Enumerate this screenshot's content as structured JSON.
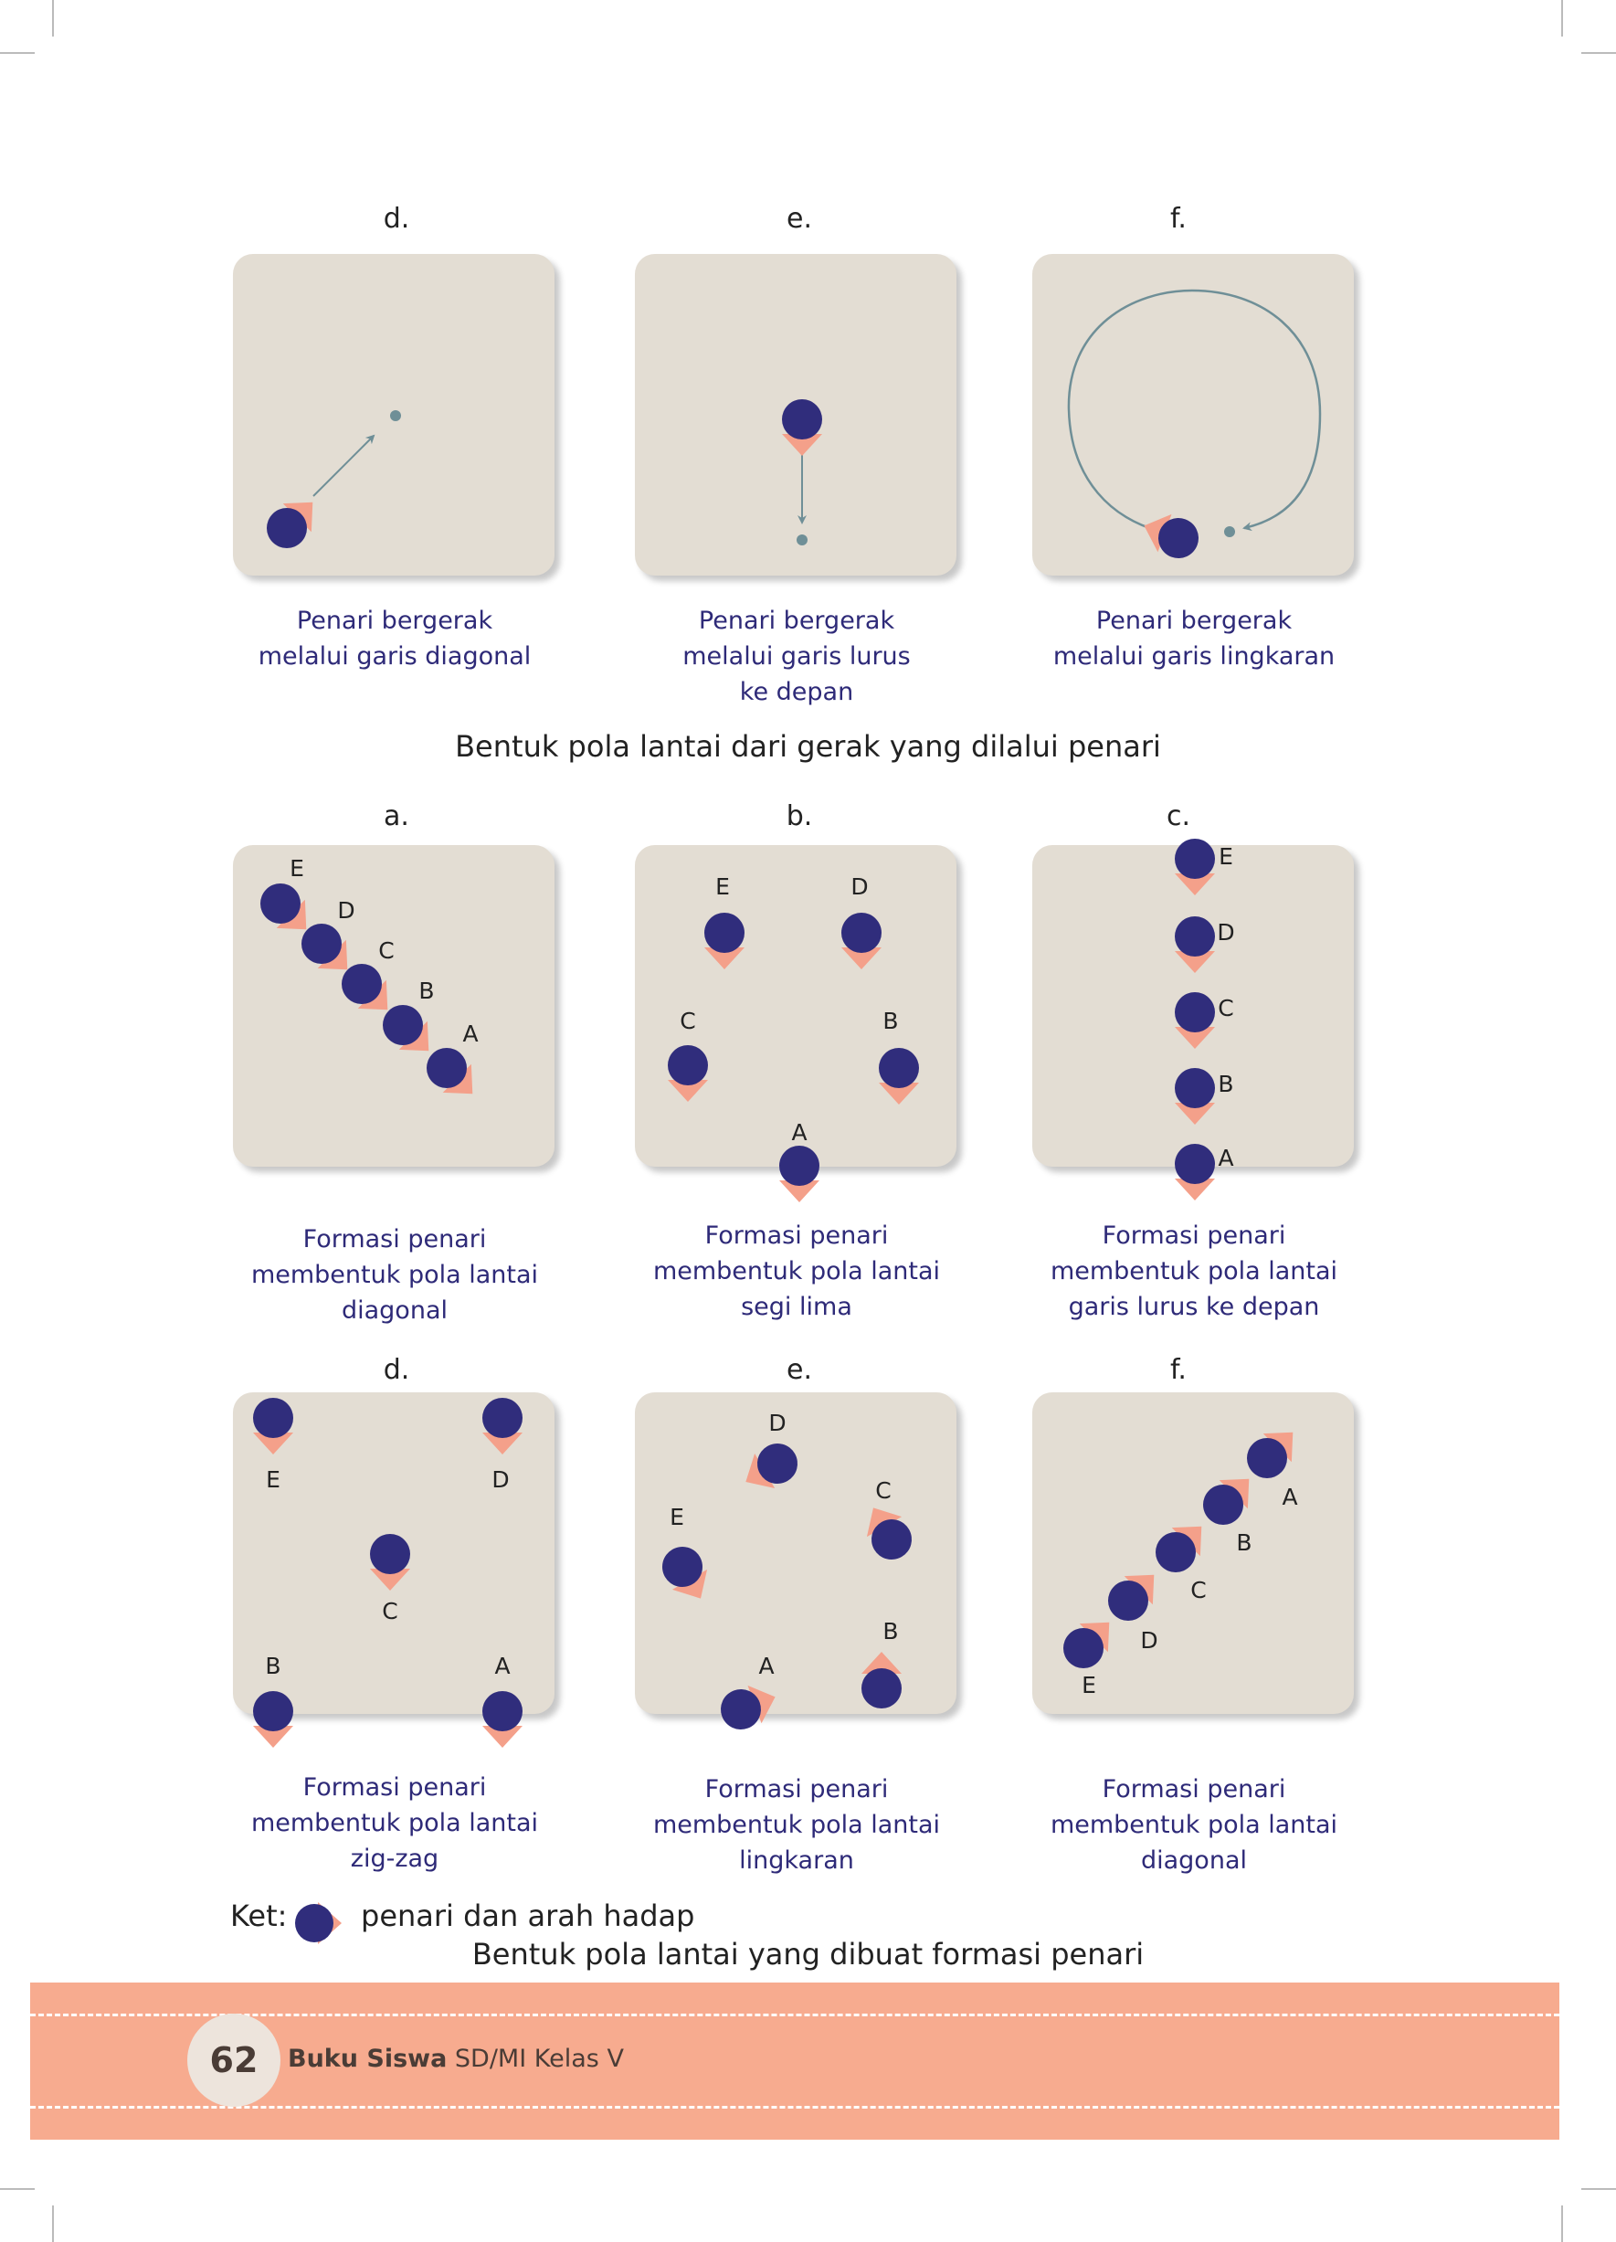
{
  "top_row": [
    {
      "letter": "d.",
      "caption": [
        "Penari bergerak",
        "melalui garis diagonal"
      ]
    },
    {
      "letter": "e.",
      "caption": [
        "Penari bergerak",
        "melalui garis lurus",
        "ke depan"
      ]
    },
    {
      "letter": "f.",
      "caption": [
        "Penari bergerak",
        "melalui garis lingkaran"
      ]
    }
  ],
  "section1_title": "Bentuk pola lantai dari gerak yang dilalui penari",
  "middle_row": [
    {
      "letter": "a.",
      "caption": [
        "Formasi penari",
        "membentuk pola lantai",
        "diagonal"
      ],
      "labels": [
        "E",
        "D",
        "C",
        "B",
        "A"
      ]
    },
    {
      "letter": "b.",
      "caption": [
        "Formasi penari",
        "membentuk pola lantai",
        "segi lima"
      ],
      "labels": [
        "E",
        "D",
        "C",
        "B",
        "A"
      ]
    },
    {
      "letter": "c.",
      "caption": [
        "Formasi penari",
        "membentuk pola lantai",
        "garis lurus ke depan"
      ],
      "labels": [
        "E",
        "D",
        "C",
        "B",
        "A"
      ]
    }
  ],
  "bottom_row": [
    {
      "letter": "d.",
      "caption": [
        "Formasi penari",
        "membentuk pola lantai",
        "zig-zag"
      ],
      "labels": [
        "E",
        "D",
        "C",
        "B",
        "A"
      ]
    },
    {
      "letter": "e.",
      "caption": [
        "Formasi penari",
        "membentuk pola lantai",
        "lingkaran"
      ],
      "labels": [
        "D",
        "C",
        "E",
        "B",
        "A"
      ]
    },
    {
      "letter": "f.",
      "caption": [
        "Formasi penari",
        "membentuk pola lantai",
        "diagonal"
      ],
      "labels": [
        "A",
        "B",
        "C",
        "D",
        "E"
      ]
    }
  ],
  "legend": {
    "prefix": "Ket:",
    "text": "penari dan arah hadap"
  },
  "section2_title": "Bentuk pola lantai yang dibuat formasi penari",
  "footer": {
    "page_number": "62",
    "book_bold": "Buku Siswa",
    "book_rest": " SD/MI Kelas V"
  },
  "colors": {
    "dancer": "#302d7c",
    "direction": "#f4a08a",
    "panel": "#e3ddd3",
    "path": "#6f8f97",
    "footer": "#f7ab8f",
    "caption": "#2e2a78"
  },
  "icons": {
    "dancer": "dancer-icon",
    "path_arrow": "arrow-icon"
  }
}
